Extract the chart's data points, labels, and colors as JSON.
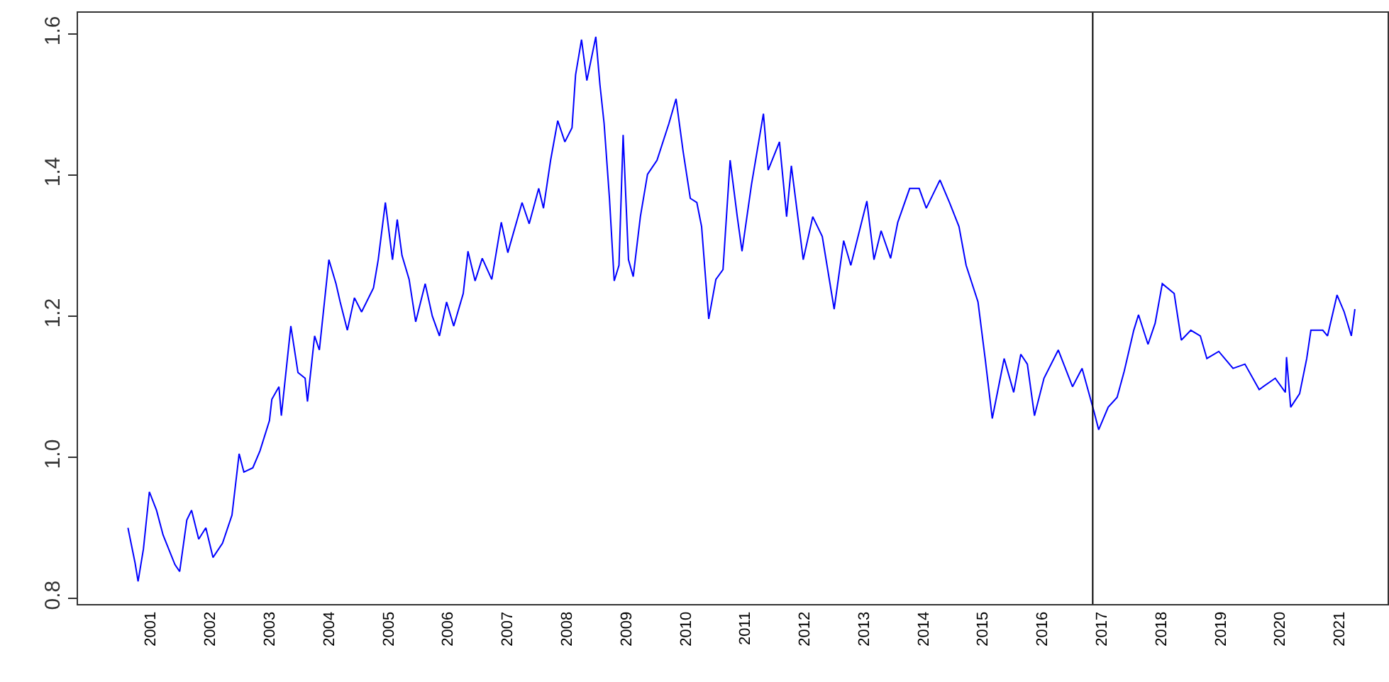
{
  "chart_data": {
    "type": "line",
    "xlim": [
      1999.78,
      2021.81
    ],
    "ylim": [
      0.792,
      1.63
    ],
    "xticks": [
      2001,
      2002,
      2003,
      2004,
      2005,
      2006,
      2007,
      2008,
      2009,
      2010,
      2011,
      2012,
      2013,
      2014,
      2015,
      2016,
      2017,
      2018,
      2019,
      2020,
      2021
    ],
    "yticks": [
      {
        "value": 0.8,
        "label": "0.8"
      },
      {
        "value": 1,
        "label": "1.0"
      },
      {
        "value": 1.2,
        "label": "1.2"
      },
      {
        "value": 1.4,
        "label": "1.4"
      },
      {
        "value": 1.6,
        "label": "1.6"
      }
    ],
    "grid": false,
    "marker": "none",
    "line_style": "solid",
    "ref_lines": [
      {
        "axis": "x",
        "value": 2016.85,
        "color": "#000000"
      }
    ],
    "series": [
      {
        "color": "#0000ff",
        "x": [
          2000.62,
          2000.74,
          2000.79,
          2000.88,
          2000.98,
          2001.1,
          2001.21,
          2001.41,
          2001.49,
          2001.61,
          2001.69,
          2001.81,
          2001.93,
          2002.05,
          2002.21,
          2002.37,
          2002.49,
          2002.57,
          2002.72,
          2002.84,
          2003.0,
          2003.04,
          2003.16,
          2003.2,
          2003.36,
          2003.48,
          2003.6,
          2003.64,
          2003.76,
          2003.84,
          2004.0,
          2004.12,
          2004.19,
          2004.31,
          2004.43,
          2004.55,
          2004.75,
          2004.83,
          2004.95,
          2005.07,
          2005.15,
          2005.23,
          2005.35,
          2005.46,
          2005.62,
          2005.74,
          2005.86,
          2005.98,
          2006.1,
          2006.26,
          2006.34,
          2006.46,
          2006.58,
          2006.74,
          2006.9,
          2007.01,
          2007.25,
          2007.37,
          2007.53,
          2007.61,
          2007.73,
          2007.85,
          2007.97,
          2008.09,
          2008.15,
          2008.25,
          2008.34,
          2008.49,
          2008.56,
          2008.63,
          2008.72,
          2008.8,
          2008.88,
          2008.95,
          2009.04,
          2009.12,
          2009.24,
          2009.36,
          2009.52,
          2009.72,
          2009.84,
          2009.96,
          2010.08,
          2010.19,
          2010.27,
          2010.39,
          2010.51,
          2010.63,
          2010.75,
          2010.87,
          2010.95,
          2011.11,
          2011.31,
          2011.39,
          2011.58,
          2011.7,
          2011.78,
          2011.98,
          2012.14,
          2012.3,
          2012.5,
          2012.66,
          2012.78,
          2013.05,
          2013.17,
          2013.29,
          2013.45,
          2013.57,
          2013.77,
          2013.93,
          2014.05,
          2014.28,
          2014.44,
          2014.6,
          2014.72,
          2014.92,
          2015.04,
          2015.16,
          2015.28,
          2015.36,
          2015.52,
          2015.64,
          2015.75,
          2015.87,
          2016.03,
          2016.27,
          2016.51,
          2016.67,
          2016.87,
          2016.95,
          2017.11,
          2017.26,
          2017.38,
          2017.54,
          2017.62,
          2017.78,
          2017.9,
          2018.02,
          2018.22,
          2018.34,
          2018.5,
          2018.66,
          2018.77,
          2018.97,
          2019.21,
          2019.41,
          2019.65,
          2019.92,
          2020.09,
          2020.11,
          2020.18,
          2020.33,
          2020.45,
          2020.52,
          2020.72,
          2020.8,
          2020.96,
          2021.08,
          2021.2,
          2021.26
        ],
        "values": [
          0.9,
          0.85,
          0.824,
          0.87,
          0.951,
          0.925,
          0.89,
          0.848,
          0.838,
          0.911,
          0.925,
          0.884,
          0.9,
          0.858,
          0.878,
          0.918,
          1.005,
          0.979,
          0.985,
          1.009,
          1.052,
          1.082,
          1.1,
          1.059,
          1.186,
          1.12,
          1.112,
          1.079,
          1.172,
          1.152,
          1.28,
          1.246,
          1.22,
          1.18,
          1.226,
          1.206,
          1.24,
          1.28,
          1.361,
          1.28,
          1.337,
          1.286,
          1.252,
          1.192,
          1.246,
          1.2,
          1.172,
          1.22,
          1.186,
          1.232,
          1.292,
          1.25,
          1.282,
          1.252,
          1.333,
          1.29,
          1.361,
          1.331,
          1.381,
          1.353,
          1.421,
          1.477,
          1.447,
          1.467,
          1.542,
          1.592,
          1.534,
          1.596,
          1.528,
          1.473,
          1.367,
          1.25,
          1.272,
          1.457,
          1.28,
          1.256,
          1.341,
          1.401,
          1.421,
          1.473,
          1.508,
          1.433,
          1.367,
          1.361,
          1.327,
          1.196,
          1.252,
          1.266,
          1.421,
          1.341,
          1.292,
          1.387,
          1.487,
          1.407,
          1.447,
          1.341,
          1.413,
          1.28,
          1.341,
          1.313,
          1.21,
          1.307,
          1.272,
          1.363,
          1.28,
          1.321,
          1.282,
          1.333,
          1.381,
          1.381,
          1.353,
          1.393,
          1.361,
          1.327,
          1.272,
          1.22,
          1.14,
          1.055,
          1.106,
          1.14,
          1.092,
          1.146,
          1.132,
          1.059,
          1.112,
          1.152,
          1.1,
          1.126,
          1.065,
          1.039,
          1.071,
          1.085,
          1.122,
          1.18,
          1.202,
          1.16,
          1.19,
          1.246,
          1.232,
          1.166,
          1.18,
          1.172,
          1.14,
          1.15,
          1.126,
          1.132,
          1.096,
          1.112,
          1.092,
          1.142,
          1.071,
          1.09,
          1.14,
          1.18,
          1.18,
          1.172,
          1.23,
          1.206,
          1.172,
          1.21
        ]
      }
    ]
  }
}
